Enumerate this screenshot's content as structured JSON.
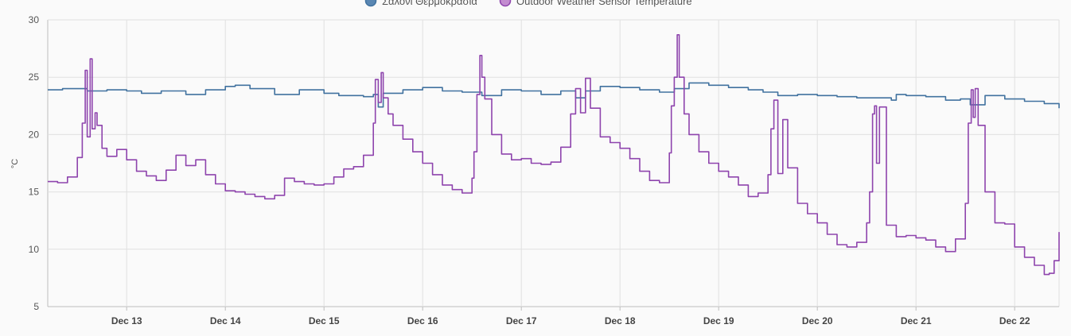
{
  "legend": [
    {
      "label": "Σαλόνι Θερμοκρασία",
      "color": "#5a87b3",
      "stroke": "#41729f"
    },
    {
      "label": "Outdoor Weather Sensor Temperature",
      "color": "#c38cd0",
      "stroke": "#8e44ad"
    }
  ],
  "chart_data": {
    "type": "line",
    "title": "",
    "ylabel": "°C",
    "xlabel": "",
    "ylim": [
      5,
      30
    ],
    "xlim": [
      12.2,
      22.45
    ],
    "y_ticks": [
      5,
      10,
      15,
      20,
      25,
      30
    ],
    "x_ticks": [
      {
        "label": "Dec 13",
        "value": 13
      },
      {
        "label": "Dec 14",
        "value": 14
      },
      {
        "label": "Dec 15",
        "value": 15
      },
      {
        "label": "Dec 16",
        "value": 16
      },
      {
        "label": "Dec 17",
        "value": 17
      },
      {
        "label": "Dec 18",
        "value": 18
      },
      {
        "label": "Dec 19",
        "value": 19
      },
      {
        "label": "Dec 20",
        "value": 20
      },
      {
        "label": "Dec 21",
        "value": 21
      },
      {
        "label": "Dec 22",
        "value": 22
      }
    ],
    "grid": true,
    "legend_position": "top",
    "x_unit": "day of December",
    "series": [
      {
        "name": "Σαλόνι Θερμοκρασία",
        "color": "#41729f",
        "x": [
          12.2,
          12.35,
          12.6,
          12.8,
          13.0,
          13.15,
          13.35,
          13.6,
          13.8,
          14.0,
          14.1,
          14.25,
          14.5,
          14.75,
          15.0,
          15.15,
          15.4,
          15.5,
          15.55,
          15.6,
          15.8,
          16.0,
          16.2,
          16.4,
          16.6,
          16.8,
          17.0,
          17.2,
          17.4,
          17.55,
          17.65,
          17.8,
          18.0,
          18.2,
          18.4,
          18.55,
          18.7,
          18.9,
          19.1,
          19.3,
          19.45,
          19.6,
          19.8,
          20.0,
          20.2,
          20.4,
          20.6,
          20.75,
          20.8,
          20.9,
          21.1,
          21.3,
          21.45,
          21.55,
          21.7,
          21.9,
          22.1,
          22.3,
          22.45
        ],
        "y": [
          23.9,
          24.0,
          23.8,
          23.9,
          23.8,
          23.6,
          23.8,
          23.5,
          23.9,
          24.2,
          24.3,
          24.0,
          23.5,
          23.9,
          23.6,
          23.4,
          23.3,
          23.5,
          22.4,
          23.6,
          23.9,
          24.1,
          23.8,
          23.7,
          23.4,
          23.9,
          23.8,
          23.5,
          23.8,
          23.2,
          23.8,
          24.2,
          24.1,
          23.9,
          23.7,
          24.0,
          24.5,
          24.3,
          24.1,
          23.9,
          23.7,
          23.4,
          23.5,
          23.4,
          23.3,
          23.2,
          23.2,
          23.0,
          23.5,
          23.4,
          23.3,
          23.0,
          23.1,
          22.6,
          23.4,
          23.1,
          22.9,
          22.7,
          22.3
        ]
      },
      {
        "name": "Outdoor Weather Sensor Temperature",
        "color": "#8e44ad",
        "x": [
          12.2,
          12.3,
          12.4,
          12.5,
          12.55,
          12.58,
          12.6,
          12.63,
          12.65,
          12.68,
          12.7,
          12.75,
          12.8,
          12.9,
          13.0,
          13.1,
          13.2,
          13.3,
          13.4,
          13.5,
          13.6,
          13.7,
          13.8,
          13.9,
          14.0,
          14.1,
          14.2,
          14.3,
          14.4,
          14.5,
          14.6,
          14.7,
          14.8,
          14.9,
          15.0,
          15.1,
          15.2,
          15.3,
          15.4,
          15.5,
          15.52,
          15.55,
          15.58,
          15.6,
          15.65,
          15.7,
          15.8,
          15.9,
          16.0,
          16.1,
          16.2,
          16.3,
          16.4,
          16.5,
          16.52,
          16.55,
          16.58,
          16.6,
          16.63,
          16.7,
          16.8,
          16.9,
          17.0,
          17.1,
          17.2,
          17.3,
          17.4,
          17.5,
          17.55,
          17.6,
          17.65,
          17.7,
          17.8,
          17.9,
          18.0,
          18.1,
          18.2,
          18.3,
          18.4,
          18.5,
          18.52,
          18.55,
          18.58,
          18.6,
          18.65,
          18.7,
          18.8,
          18.9,
          19.0,
          19.1,
          19.2,
          19.3,
          19.4,
          19.5,
          19.53,
          19.56,
          19.6,
          19.65,
          19.7,
          19.8,
          19.9,
          20.0,
          20.1,
          20.2,
          20.3,
          20.4,
          20.5,
          20.53,
          20.56,
          20.58,
          20.6,
          20.63,
          20.7,
          20.8,
          20.9,
          21.0,
          21.1,
          21.2,
          21.3,
          21.4,
          21.5,
          21.53,
          21.56,
          21.58,
          21.6,
          21.63,
          21.7,
          21.8,
          21.9,
          22.0,
          22.1,
          22.2,
          22.3,
          22.35,
          22.4,
          22.45
        ],
        "y": [
          15.9,
          15.8,
          16.3,
          18.0,
          21.0,
          25.6,
          19.8,
          26.6,
          20.5,
          21.9,
          20.8,
          18.8,
          18.1,
          18.7,
          17.8,
          16.8,
          16.4,
          16.0,
          16.9,
          18.2,
          17.3,
          17.8,
          16.5,
          15.7,
          15.1,
          15.0,
          14.8,
          14.6,
          14.4,
          14.7,
          16.2,
          15.9,
          15.7,
          15.6,
          15.7,
          16.3,
          17.0,
          17.2,
          18.2,
          21.0,
          24.8,
          22.8,
          25.4,
          23.2,
          21.8,
          20.8,
          19.6,
          18.5,
          17.5,
          16.5,
          15.6,
          15.2,
          14.9,
          16.2,
          18.5,
          23.5,
          26.9,
          25.0,
          23.1,
          20.0,
          18.3,
          17.8,
          17.9,
          17.5,
          17.4,
          17.6,
          18.9,
          21.8,
          24.0,
          21.9,
          24.9,
          22.3,
          19.8,
          19.3,
          18.8,
          17.9,
          16.8,
          16.0,
          15.8,
          18.4,
          22.5,
          25.0,
          28.7,
          25.0,
          21.8,
          20.0,
          18.5,
          17.5,
          16.8,
          16.3,
          15.6,
          14.6,
          14.9,
          16.5,
          20.5,
          23.0,
          16.6,
          21.3,
          17.1,
          14.0,
          13.1,
          12.3,
          11.3,
          10.4,
          10.2,
          10.6,
          12.3,
          15.0,
          21.8,
          22.5,
          17.5,
          22.4,
          12.1,
          11.1,
          11.2,
          11.0,
          10.8,
          10.2,
          9.8,
          10.9,
          14.0,
          21.0,
          23.9,
          21.5,
          24.0,
          20.8,
          15.0,
          12.3,
          12.2,
          10.2,
          9.3,
          8.6,
          7.8,
          7.9,
          9.0,
          11.5
        ]
      }
    ]
  }
}
